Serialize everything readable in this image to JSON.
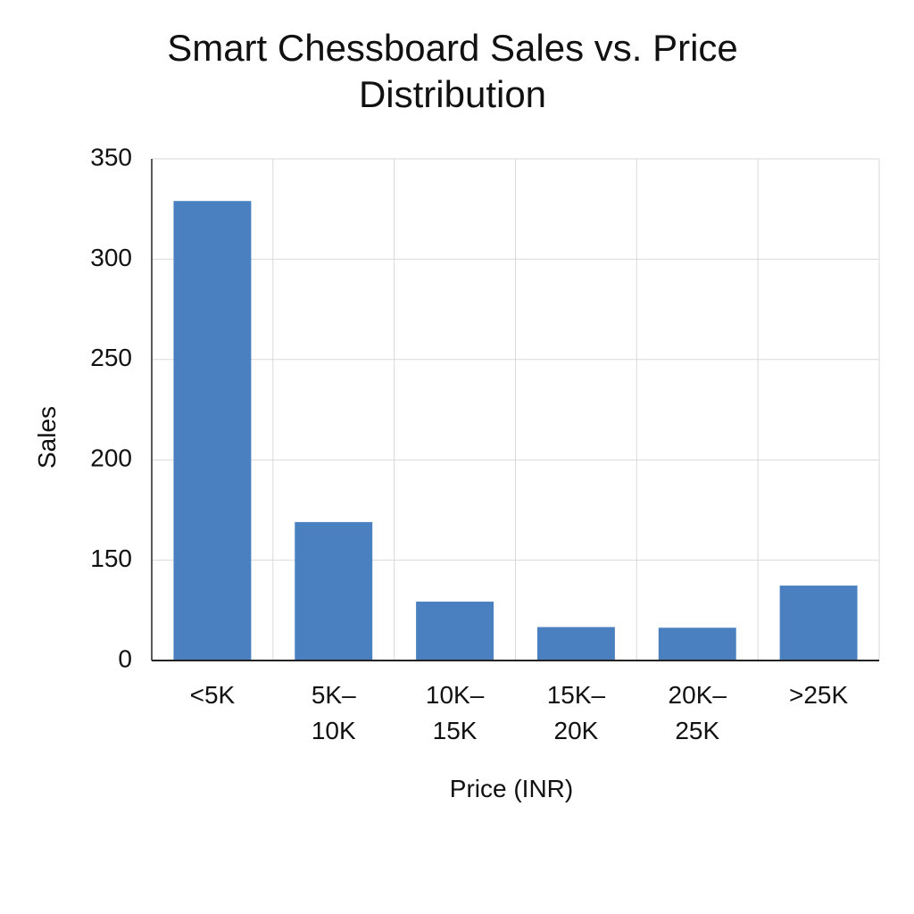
{
  "chart_data": {
    "type": "bar",
    "title": "Smart Chessboard Sales vs. Price Distribution",
    "x_label": "Price (INR)",
    "y_label": "Sales",
    "categories": [
      "<5K",
      "5K–10K",
      "10K–15K",
      "15K–20K",
      "20K–25K",
      ">25K"
    ],
    "values": [
      329,
      169,
      88,
      50,
      49,
      112
    ],
    "color": "#4a80bf",
    "ylim": [
      0,
      350
    ],
    "yticks": [
      0,
      150,
      200,
      250,
      300,
      350
    ],
    "grid": true
  }
}
